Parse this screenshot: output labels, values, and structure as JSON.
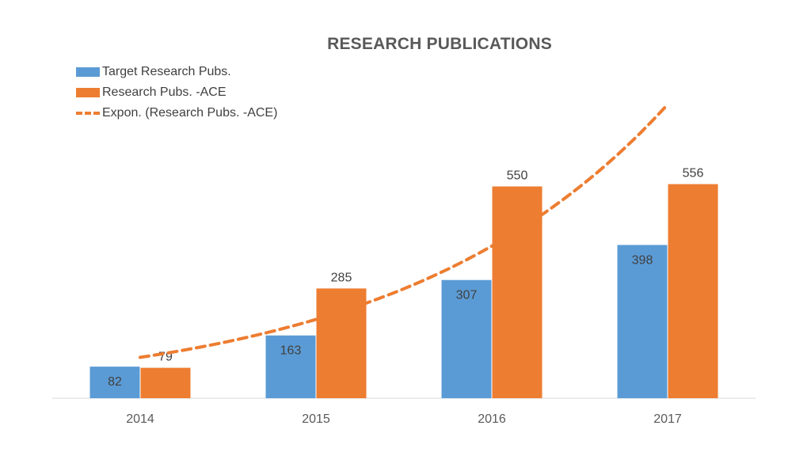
{
  "chart_data": {
    "type": "bar",
    "title": "RESEARCH PUBLICATIONS",
    "categories": [
      "2014",
      "2015",
      "2016",
      "2017"
    ],
    "series": [
      {
        "name": "Target Research Pubs.",
        "values": [
          82,
          163,
          307,
          398
        ],
        "color": "#5b9bd5"
      },
      {
        "name": "Research Pubs. -ACE",
        "values": [
          79,
          285,
          550,
          556
        ],
        "color": "#ed7d31"
      }
    ],
    "trendline": {
      "name": "Expon. (Research Pubs. -ACE)",
      "type": "exponential",
      "color": "#ed7d31",
      "start_value": 106,
      "end_value": 763
    },
    "ylim": [
      0,
      880
    ],
    "grid": false,
    "legend_position": "top-left"
  }
}
